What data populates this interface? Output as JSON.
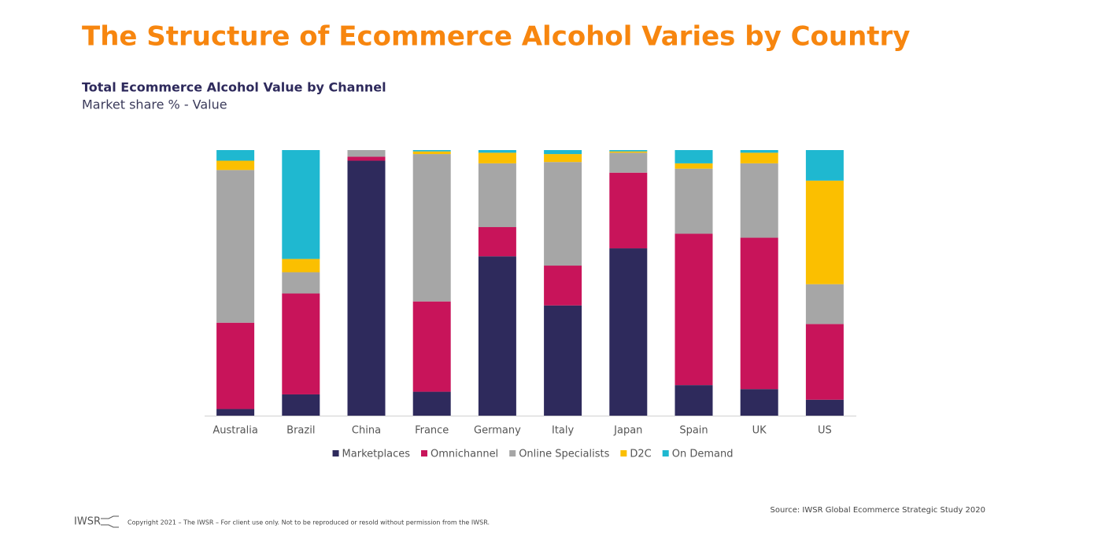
{
  "slide_title": "The Structure of Ecommerce Alcohol Varies by Country",
  "chart_data": {
    "type": "stacked_bar",
    "title": "Total Ecommerce Alcohol Value by Channel",
    "subtitle": "Market share % - Value",
    "categories": [
      "Australia",
      "Brazil",
      "China",
      "France",
      "Germany",
      "Italy",
      "Japan",
      "Spain",
      "UK",
      "US"
    ],
    "ylim": [
      0,
      100
    ],
    "legend": "bottom",
    "series": [
      {
        "name": "Marketplaces",
        "color": "#2e2a5c",
        "values": [
          2.5,
          8,
          96,
          9,
          60,
          41.5,
          63,
          11.5,
          10,
          6
        ]
      },
      {
        "name": "Omnichannel",
        "color": "#c8145a",
        "values": [
          32.5,
          38,
          1.5,
          34,
          11,
          15,
          28.5,
          57,
          57,
          28.5
        ]
      },
      {
        "name": "Online Specialists",
        "color": "#a6a6a6",
        "values": [
          57.5,
          8,
          2.5,
          55.5,
          24,
          39,
          7.5,
          24.5,
          28,
          15
        ]
      },
      {
        "name": "D2C",
        "color": "#fbbf00",
        "values": [
          3.5,
          5,
          0,
          1,
          4,
          3,
          0.5,
          2,
          4,
          39
        ]
      },
      {
        "name": "On Demand",
        "color": "#1fb8d0",
        "values": [
          4,
          41,
          0,
          0.5,
          1,
          1.5,
          0.5,
          5,
          1,
          11.5
        ]
      }
    ]
  },
  "footer": {
    "logo": "IWSR",
    "copyright": "Copyright 2021 – The IWSR – For client use only. Not to be reproduced or resold without permission from the IWSR.",
    "source": "Source: IWSR Global Ecommerce Strategic Study 2020"
  }
}
